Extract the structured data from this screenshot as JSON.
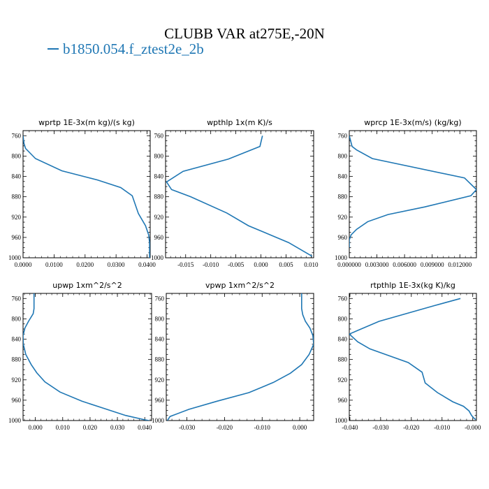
{
  "title": "CLUBB VAR at275E,-20N",
  "legend": [
    {
      "label": "b1850.054.f_ztest2e_2b",
      "color": "#1f77b4"
    }
  ],
  "chart_data": [
    {
      "type": "line",
      "title": "wprtp   1E-3x(m kg)/(s kg)",
      "color": "#1f77b4",
      "xlim": [
        0.0,
        0.041
      ],
      "ylim": [
        1000,
        750
      ],
      "xticks": [
        0.0,
        0.01,
        0.02,
        0.03,
        0.04
      ],
      "xticklabels": [
        "0.0000",
        "0.0100",
        "0.0200",
        "0.0300",
        "0.0400"
      ],
      "yticks": [
        760,
        800,
        840,
        880,
        920,
        960,
        1000
      ],
      "yticklabels": [
        "760",
        "800",
        "840",
        "880",
        "920",
        "960",
        "1000"
      ],
      "x": [
        0.0,
        0.0003,
        0.0008,
        0.004,
        0.0125,
        0.024,
        0.0315,
        0.0352,
        0.0372,
        0.0395,
        0.0405,
        0.0408,
        0.0408,
        0.0408
      ],
      "y": [
        760,
        775,
        785,
        805,
        829,
        847,
        862,
        878,
        913,
        937,
        955,
        970,
        985,
        1000
      ]
    },
    {
      "type": "line",
      "title": "wpthlp   1x(m K)/s",
      "color": "#1f77b4",
      "xlim": [
        -0.019,
        0.0105
      ],
      "ylim": [
        1000,
        750
      ],
      "xticks": [
        -0.015,
        -0.01,
        -0.005,
        0.0,
        0.005,
        0.01
      ],
      "xticklabels": [
        "-0.015",
        "-0.010",
        "-0.005",
        "0.000",
        "0.005",
        "0.010"
      ],
      "yticks": [
        760,
        800,
        840,
        880,
        920,
        960,
        1000
      ],
      "yticklabels": [
        "760",
        "800",
        "840",
        "880",
        "920",
        "960",
        "1000"
      ],
      "x": [
        0.0003,
        -0.0002,
        -0.0065,
        -0.0155,
        -0.0188,
        -0.0178,
        -0.014,
        -0.0068,
        -0.0025,
        0.0055,
        0.0102
      ],
      "y": [
        760,
        781,
        806,
        830,
        851,
        866,
        880,
        912,
        937,
        970,
        997
      ]
    },
    {
      "type": "line",
      "title": "wprcp   1E-3x(m/s) (kg/kg)",
      "color": "#1f77b4",
      "xlim": [
        0.0,
        0.0138
      ],
      "ylim": [
        1000,
        750
      ],
      "xticks": [
        0.0,
        0.003,
        0.006,
        0.009,
        0.012
      ],
      "xticklabels": [
        "0.000000",
        "0.003000",
        "0.006000",
        "0.009000",
        "0.012000"
      ],
      "yticks": [
        760,
        800,
        840,
        880,
        920,
        960,
        1000
      ],
      "yticklabels": [
        "760",
        "800",
        "840",
        "880",
        "920",
        "960",
        "1000"
      ],
      "x": [
        0.0,
        0.0003,
        0.0008,
        0.0025,
        0.0125,
        0.0138,
        0.0132,
        0.0082,
        0.0042,
        0.002,
        0.0008,
        0.0002,
        0.0,
        0.0
      ],
      "y": [
        760,
        781,
        788,
        805,
        843,
        866,
        878,
        900,
        915,
        929,
        944,
        955,
        965,
        980
      ]
    },
    {
      "type": "line",
      "title": "upwp   1xm^2/s^2",
      "color": "#1f77b4",
      "xlim": [
        -0.0045,
        0.0425
      ],
      "ylim": [
        1000,
        750
      ],
      "xticks": [
        0.0,
        0.01,
        0.02,
        0.03,
        0.04
      ],
      "xticklabels": [
        "0.000",
        "0.010",
        "0.020",
        "0.030",
        "0.040"
      ],
      "yticks": [
        760,
        800,
        840,
        880,
        920,
        960,
        1000
      ],
      "yticklabels": [
        "760",
        "800",
        "840",
        "880",
        "920",
        "960",
        "1000"
      ],
      "x": [
        -0.0005,
        -0.0005,
        -0.0008,
        -0.0025,
        -0.0038,
        -0.0045,
        -0.0044,
        -0.0035,
        -0.0015,
        0.0005,
        0.0035,
        0.009,
        0.017,
        0.025,
        0.033,
        0.0395,
        0.0415,
        0.0418,
        0.0418
      ],
      "y": [
        750,
        780,
        790,
        805,
        818,
        833,
        850,
        870,
        890,
        906,
        924,
        944,
        962,
        976,
        990,
        998,
        1000,
        1000,
        1000
      ]
    },
    {
      "type": "line",
      "title": "vpwp   1xm^2/s^2",
      "color": "#1f77b4",
      "xlim": [
        -0.0355,
        0.0037
      ],
      "ylim": [
        1000,
        750
      ],
      "xticks": [
        -0.03,
        -0.02,
        -0.01,
        0.0
      ],
      "xticklabels": [
        "-0.030",
        "-0.020",
        "-0.010",
        "0.000"
      ],
      "yticks": [
        760,
        800,
        840,
        880,
        920,
        960,
        1000
      ],
      "yticklabels": [
        "760",
        "800",
        "840",
        "880",
        "920",
        "960",
        "1000"
      ],
      "x": [
        0.0005,
        0.0005,
        0.0008,
        0.0015,
        0.0027,
        0.0035,
        0.0037,
        0.0025,
        0.0005,
        -0.0025,
        -0.007,
        -0.0135,
        -0.022,
        -0.0295,
        -0.0345,
        -0.0352
      ],
      "y": [
        750,
        780,
        792,
        805,
        818,
        833,
        850,
        870,
        890,
        907,
        925,
        945,
        962,
        978,
        992,
        1000
      ]
    },
    {
      "type": "line",
      "title": "rtpthlp   1E-3x(kg K)/kg",
      "color": "#1f77b4",
      "xlim": [
        -0.0402,
        0.0012
      ],
      "ylim": [
        1000,
        750
      ],
      "xticks": [
        -0.04,
        -0.03,
        -0.02,
        -0.01,
        0.0
      ],
      "xticklabels": [
        "-0.040",
        "-0.030",
        "-0.020",
        "-0.010",
        "-0.000"
      ],
      "yticks": [
        760,
        800,
        840,
        880,
        920,
        960,
        1000
      ],
      "yticklabels": [
        "760",
        "800",
        "840",
        "880",
        "920",
        "960",
        "1000"
      ],
      "x": [
        -0.004,
        -0.0125,
        -0.0305,
        -0.0402,
        -0.0375,
        -0.0335,
        -0.021,
        -0.0165,
        -0.0155,
        -0.0115,
        -0.0065,
        -0.003,
        -0.0012,
        -0.0004,
        0.0005,
        0.001
      ],
      "y": [
        760,
        774,
        805,
        830,
        845,
        859,
        886,
        905,
        926,
        945,
        963,
        972,
        981,
        990,
        996,
        998
      ]
    }
  ]
}
